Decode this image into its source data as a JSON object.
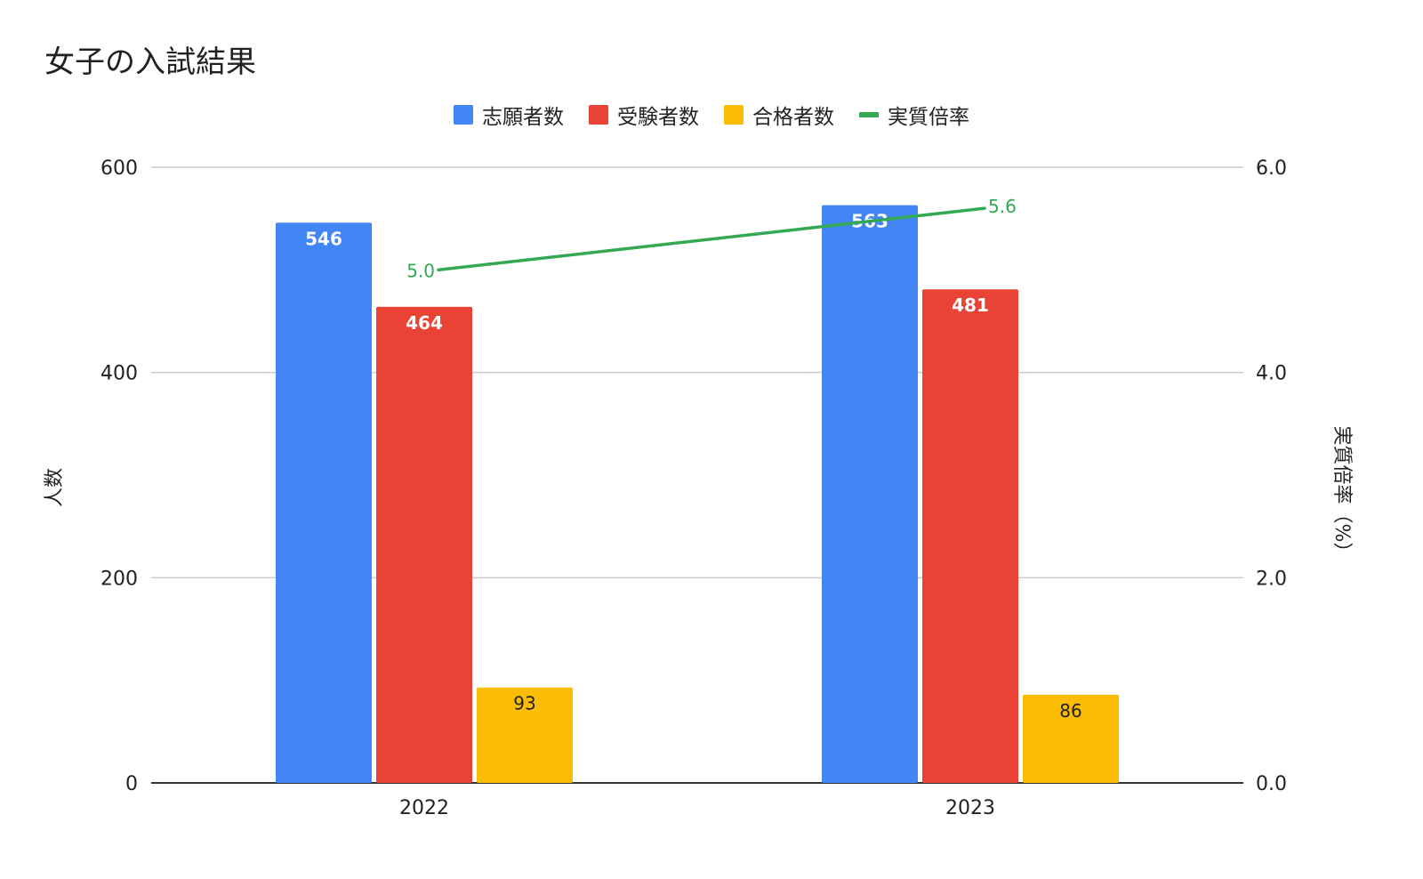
{
  "chart_data": {
    "type": "bar",
    "title": "女子の入試結果",
    "categories": [
      "2022",
      "2023"
    ],
    "series": [
      {
        "name": "志願者数",
        "type": "bar",
        "axis": "left",
        "color": "#4285f4",
        "values": [
          546,
          563
        ],
        "label_color": "#ffffff"
      },
      {
        "name": "受験者数",
        "type": "bar",
        "axis": "left",
        "color": "#ea4335",
        "values": [
          464,
          481
        ],
        "label_color": "#ffffff"
      },
      {
        "name": "合格者数",
        "type": "bar",
        "axis": "left",
        "color": "#fbbc04",
        "values": [
          93,
          86
        ],
        "label_color": "#222222"
      },
      {
        "name": "実質倍率",
        "type": "line",
        "axis": "right",
        "color": "#34a853",
        "values": [
          5.0,
          5.6
        ],
        "labels": [
          "5.0",
          "5.6"
        ]
      }
    ],
    "ylabel": "人数",
    "y2label": "実質倍率（%）",
    "ylim": [
      0,
      600
    ],
    "y2lim": [
      0,
      6.0
    ],
    "yticks": [
      "0",
      "200",
      "400",
      "600"
    ],
    "y2ticks": [
      "0.0",
      "2.0",
      "4.0",
      "6.0"
    ],
    "grid": true,
    "legend_position": "top-center"
  }
}
